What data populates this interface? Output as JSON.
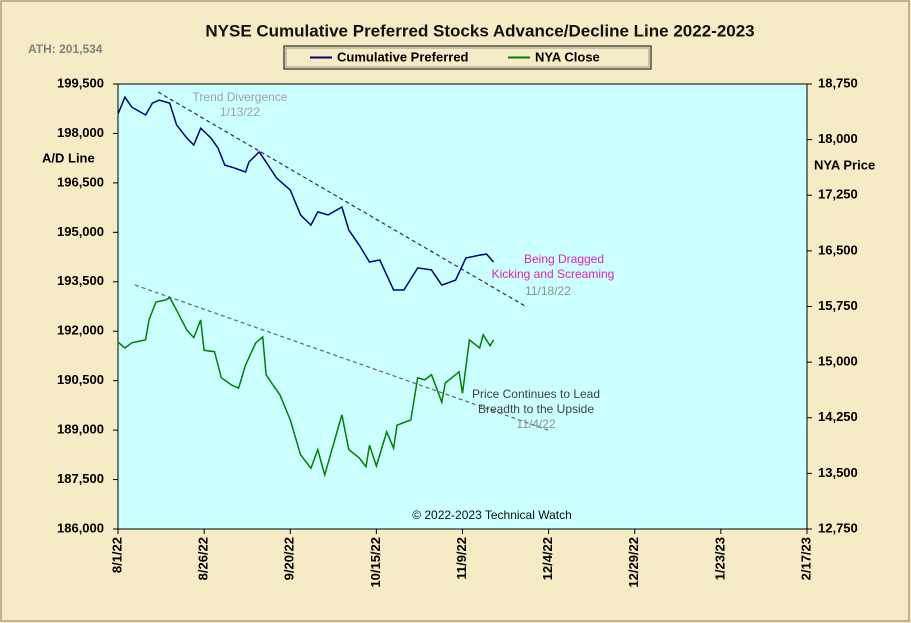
{
  "chart_data": {
    "type": "line",
    "title": "NYSE Cumulative  Preferred Stocks Advance/Decline  Line 2022-2023",
    "ath": "ATH: 201,534",
    "ylabel": "A/D Line",
    "y2label": "NYA Price",
    "copyright": "© 2022-2023  Technical Watch",
    "annotations": [
      {
        "text": "Trend  Divergence",
        "color": "#a0a0a0"
      },
      {
        "text": "1/13/22",
        "color": "#a0a0a0"
      },
      {
        "text": "Being Dragged",
        "color": "#e020c0"
      },
      {
        "text": "Kicking and Screaming",
        "color": "#e020c0"
      },
      {
        "text": "11/18/22",
        "color": "#909090"
      },
      {
        "text": "Price Continues to Lead",
        "color": "#404040"
      },
      {
        "text": "Breadth to the Upside",
        "color": "#404040"
      },
      {
        "text": "11/4/22",
        "color": "#909090"
      }
    ],
    "xlim": [
      "8/1/22",
      "2/17/23"
    ],
    "xticks": [
      "8/1/22",
      "8/26/22",
      "9/20/22",
      "10/15/22",
      "11/9/22",
      "12/4/22",
      "12/29/22",
      "1/23/23",
      "2/17/23"
    ],
    "ylim": [
      186000,
      199500
    ],
    "yticks": [
      {
        "value": 186000,
        "label": "186,000"
      },
      {
        "value": 187500,
        "label": "187,500"
      },
      {
        "value": 189000,
        "label": "189,000"
      },
      {
        "value": 190500,
        "label": "190,500"
      },
      {
        "value": 192000,
        "label": "192,000"
      },
      {
        "value": 193500,
        "label": "193,500"
      },
      {
        "value": 195000,
        "label": "195,000"
      },
      {
        "value": 196500,
        "label": "196,500"
      },
      {
        "value": 198000,
        "label": "198,000"
      },
      {
        "value": 199500,
        "label": "199,500"
      }
    ],
    "y2lim": [
      12750,
      18750
    ],
    "y2ticks": [
      {
        "value": 12750,
        "label": "12,750"
      },
      {
        "value": 13500,
        "label": "13,500"
      },
      {
        "value": 14250,
        "label": "14,250"
      },
      {
        "value": 15000,
        "label": "15,000"
      },
      {
        "value": 15750,
        "label": "15,750"
      },
      {
        "value": 16500,
        "label": "16,500"
      },
      {
        "value": 17250,
        "label": "17,250"
      },
      {
        "value": 18000,
        "label": "18,000"
      },
      {
        "value": 18750,
        "label": "18,750"
      }
    ],
    "series": [
      {
        "name": "Cumulative Preferred",
        "color": "#000080",
        "x": [
          "8/1/22",
          "8/3/22",
          "8/5/22",
          "8/9/22",
          "8/11/22",
          "8/13/22",
          "8/16/22",
          "8/18/22",
          "8/21/22",
          "8/23/22",
          "8/25/22",
          "8/28/22",
          "8/30/22",
          "9/1/22",
          "9/3/22",
          "9/7/22",
          "9/8/22",
          "9/11/22",
          "9/13/22",
          "9/16/22",
          "9/20/22",
          "9/23/22",
          "9/26/22",
          "9/28/22",
          "10/1/22",
          "10/5/22",
          "10/7/22",
          "10/10/22",
          "10/13/22",
          "10/16/22",
          "10/20/22",
          "10/23/22",
          "10/27/22",
          "10/31/22",
          "11/3/22",
          "11/7/22",
          "11/10/22",
          "11/14/22",
          "11/16/22",
          "11/18/22"
        ],
        "values": [
          198590,
          199100,
          198800,
          198560,
          198920,
          199010,
          198920,
          198260,
          197860,
          197650,
          198160,
          197860,
          197560,
          197040,
          196980,
          196830,
          197130,
          197440,
          197130,
          196650,
          196280,
          195530,
          195220,
          195620,
          195530,
          195770,
          195070,
          194620,
          194100,
          194160,
          193250,
          193250,
          193920,
          193860,
          193400,
          193550,
          194220,
          194310,
          194340,
          194100
        ]
      },
      {
        "name": "NYA Close",
        "color": "#008000",
        "axis": "y2",
        "x": [
          "8/1/22",
          "8/3/22",
          "8/5/22",
          "8/9/22",
          "8/10/22",
          "8/12/22",
          "8/15/22",
          "8/16/22",
          "8/18/22",
          "8/21/22",
          "8/23/22",
          "8/25/22",
          "8/26/22",
          "8/29/22",
          "8/31/22",
          "9/3/22",
          "9/5/22",
          "9/7/22",
          "9/10/22",
          "9/12/22",
          "9/13/22",
          "9/15/22",
          "9/17/22",
          "9/20/22",
          "9/23/22",
          "9/26/22",
          "9/28/22",
          "9/30/22",
          "10/5/22",
          "10/7/22",
          "10/10/22",
          "10/12/22",
          "10/13/22",
          "10/15/22",
          "10/18/22",
          "10/20/22",
          "10/21/22",
          "10/25/22",
          "10/27/22",
          "10/29/22",
          "10/31/22",
          "11/3/22",
          "11/4/22",
          "11/7/22",
          "11/8/22",
          "11/9/22",
          "11/11/22",
          "11/14/22",
          "11/15/22",
          "11/17/22",
          "11/18/22"
        ],
        "values": [
          15270,
          15190,
          15260,
          15300,
          15570,
          15810,
          15840,
          15870,
          15700,
          15430,
          15330,
          15570,
          15160,
          15140,
          14790,
          14690,
          14650,
          14960,
          15260,
          15340,
          14830,
          14690,
          14560,
          14220,
          13750,
          13570,
          13820,
          13480,
          14290,
          13820,
          13710,
          13590,
          13880,
          13600,
          14060,
          13840,
          14150,
          14220,
          14790,
          14760,
          14830,
          14460,
          14720,
          14830,
          14870,
          14580,
          15300,
          15190,
          15370,
          15220,
          15300
        ]
      }
    ]
  }
}
